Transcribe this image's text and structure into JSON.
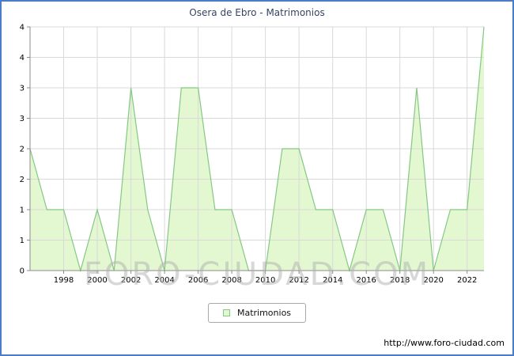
{
  "title": "Osera de Ebro - Matrimonios",
  "watermark": "FORO-CIUDAD.COM",
  "legend": {
    "label": "Matrimonios"
  },
  "footer": {
    "url": "http://www.foro-ciudad.com"
  },
  "colors": {
    "frame_border": "#4d7cc7",
    "area_fill": "#e3f8d0",
    "line": "#84c884",
    "grid": "#d9d9d9",
    "axis": "#8c8c8c",
    "tick_text": "#000000"
  },
  "chart_data": {
    "type": "area",
    "series_name": "Matrimonios",
    "x": [
      1996,
      1997,
      1998,
      1999,
      2000,
      2001,
      2002,
      2003,
      2004,
      2005,
      2006,
      2007,
      2008,
      2009,
      2010,
      2011,
      2012,
      2013,
      2014,
      2015,
      2016,
      2017,
      2018,
      2019,
      2020,
      2021,
      2022,
      2023
    ],
    "values": [
      2,
      1,
      1,
      0,
      1,
      0,
      3,
      1,
      0,
      3,
      3,
      1,
      1,
      0,
      0,
      2,
      2,
      1,
      1,
      0,
      1,
      1,
      0,
      3,
      0,
      1,
      1,
      4
    ],
    "ylim": [
      0,
      4
    ],
    "grid": true,
    "legend_position": "bottom-center",
    "x_ticks": [
      1998,
      2000,
      2002,
      2004,
      2006,
      2008,
      2010,
      2012,
      2014,
      2016,
      2018,
      2020,
      2022
    ],
    "y_ticks": [
      {
        "value": 0,
        "label": "0"
      },
      {
        "value": 0.5,
        "label": "1"
      },
      {
        "value": 1,
        "label": "1"
      },
      {
        "value": 1.5,
        "label": "2"
      },
      {
        "value": 2,
        "label": "2"
      },
      {
        "value": 2.5,
        "label": "3"
      },
      {
        "value": 3,
        "label": "3"
      },
      {
        "value": 3.5,
        "label": "4"
      },
      {
        "value": 4,
        "label": "4"
      }
    ]
  }
}
